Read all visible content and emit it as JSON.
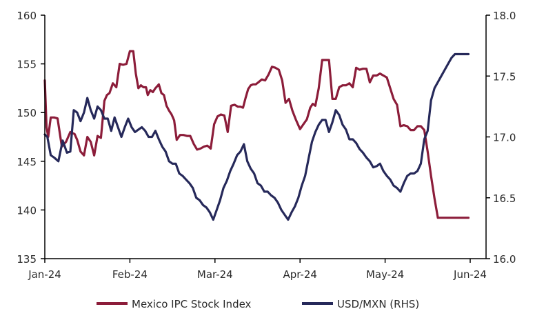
{
  "chart_data": {
    "type": "line",
    "title": "",
    "colors": {
      "ipc": "#8c1d3a",
      "usdmxn": "#26295a",
      "axis": "#000000",
      "text": "#2b2b2b"
    },
    "x_tick_labels": [
      "Jan-24",
      "Feb-24",
      "Mar-24",
      "Apr-24",
      "May-24",
      "Jun-24"
    ],
    "x_range": [
      0,
      5
    ],
    "left_axis": {
      "label": "",
      "ylim": [
        135,
        160
      ],
      "ticks": [
        135,
        140,
        145,
        150,
        155,
        160
      ],
      "tick_labels": [
        "135",
        "140",
        "145",
        "150",
        "155",
        "160"
      ]
    },
    "right_axis": {
      "label": "",
      "ylim": [
        16.0,
        18.0
      ],
      "ticks": [
        16.0,
        16.5,
        17.0,
        17.5,
        18.0
      ],
      "tick_labels": [
        "16.0",
        "16.5",
        "17.0",
        "17.5",
        "18.0"
      ]
    },
    "legend": {
      "position": "bottom",
      "entries": [
        "Mexico IPC Stock Index",
        "USD/MXN (RHS)"
      ]
    },
    "series": [
      {
        "name": "Mexico IPC Stock Index",
        "axis": "left",
        "color": "#8c1d3a",
        "x": [
          0,
          0.02,
          0.04,
          0.07,
          0.11,
          0.15,
          0.2,
          0.25,
          0.3,
          0.35,
          0.38,
          0.42,
          0.46,
          0.5,
          0.54,
          0.58,
          0.62,
          0.66,
          0.7,
          0.73,
          0.76,
          0.8,
          0.84,
          0.88,
          0.92,
          0.96,
          1.0,
          1.04,
          1.07,
          1.1,
          1.13,
          1.16,
          1.19,
          1.21,
          1.24,
          1.27,
          1.3,
          1.34,
          1.37,
          1.4,
          1.43,
          1.46,
          1.49,
          1.52,
          1.55,
          1.59,
          1.63,
          1.67,
          1.71,
          1.75,
          1.79,
          1.83,
          1.87,
          1.91,
          1.95,
          1.99,
          2.03,
          2.07,
          2.11,
          2.15,
          2.19,
          2.23,
          2.27,
          2.3,
          2.33,
          2.36,
          2.39,
          2.42,
          2.45,
          2.48,
          2.51,
          2.55,
          2.59,
          2.63,
          2.67,
          2.71,
          2.75,
          2.79,
          2.83,
          2.87,
          2.91,
          2.95,
          3.0,
          3.04,
          3.08,
          3.12,
          3.15,
          3.18,
          3.22,
          3.26,
          3.3,
          3.34,
          3.38,
          3.42,
          3.46,
          3.5,
          3.54,
          3.58,
          3.62,
          3.66,
          3.7,
          3.74,
          3.78,
          3.82,
          3.86,
          3.9,
          3.94,
          3.98,
          4.02,
          4.06,
          4.1,
          4.14,
          4.18,
          4.22,
          4.26,
          4.3,
          4.34,
          4.38,
          4.42,
          4.46,
          4.5,
          4.54,
          4.58,
          4.62,
          4.66,
          4.7,
          4.74,
          4.78,
          4.82,
          4.86,
          4.9,
          4.94,
          4.98
        ],
        "values": [
          153.3,
          148.5,
          147.5,
          149.5,
          149.5,
          149.4,
          146.5,
          147.0,
          148.0,
          147.8,
          147.2,
          146.0,
          145.6,
          147.5,
          147.0,
          145.6,
          147.6,
          147.4,
          151.2,
          151.8,
          152.0,
          153.0,
          152.6,
          155.0,
          154.9,
          155.0,
          156.3,
          156.3,
          154.0,
          152.5,
          152.8,
          152.6,
          152.6,
          151.8,
          152.3,
          152.1,
          152.5,
          152.9,
          152.0,
          151.8,
          150.7,
          150.2,
          149.8,
          149.2,
          147.2,
          147.7,
          147.7,
          147.6,
          147.6,
          146.8,
          146.2,
          146.3,
          146.5,
          146.6,
          146.3,
          148.8,
          149.6,
          149.8,
          149.7,
          148.0,
          150.7,
          150.8,
          150.6,
          150.6,
          150.5,
          151.5,
          152.4,
          152.8,
          152.9,
          152.9,
          153.1,
          153.4,
          153.3,
          153.9,
          154.7,
          154.6,
          154.4,
          153.3,
          151.0,
          151.4,
          150.2,
          149.3,
          148.3,
          148.8,
          149.3,
          150.5,
          150.9,
          150.7,
          152.5,
          155.4,
          155.4,
          155.4,
          151.4,
          151.4,
          152.6,
          152.8,
          152.8,
          153.0,
          152.6,
          154.6,
          154.4,
          154.5,
          154.5,
          153.1,
          153.8,
          153.8,
          154.0,
          153.8,
          153.6,
          152.5,
          151.4,
          150.8,
          148.6,
          148.7,
          148.6,
          148.2,
          148.2,
          148.6,
          148.6,
          148.2,
          146.0,
          143.5,
          141.2,
          139.2,
          139.2,
          139.2,
          139.2,
          139.2,
          139.2,
          139.2,
          139.2,
          139.2,
          139.2
        ]
      },
      {
        "name": "USD/MXN (RHS)",
        "axis": "right",
        "color": "#26295a",
        "x": [
          0,
          0.03,
          0.07,
          0.11,
          0.16,
          0.21,
          0.26,
          0.3,
          0.34,
          0.38,
          0.42,
          0.46,
          0.5,
          0.54,
          0.58,
          0.62,
          0.66,
          0.7,
          0.74,
          0.78,
          0.82,
          0.86,
          0.9,
          0.94,
          0.98,
          1.02,
          1.06,
          1.1,
          1.14,
          1.18,
          1.22,
          1.26,
          1.3,
          1.34,
          1.38,
          1.42,
          1.46,
          1.5,
          1.54,
          1.58,
          1.62,
          1.66,
          1.7,
          1.74,
          1.78,
          1.82,
          1.86,
          1.9,
          1.94,
          1.98,
          2.02,
          2.06,
          2.1,
          2.14,
          2.18,
          2.22,
          2.26,
          2.3,
          2.34,
          2.38,
          2.42,
          2.46,
          2.5,
          2.54,
          2.58,
          2.62,
          2.66,
          2.7,
          2.74,
          2.78,
          2.82,
          2.86,
          2.9,
          2.94,
          2.98,
          3.02,
          3.06,
          3.1,
          3.14,
          3.18,
          3.22,
          3.26,
          3.3,
          3.34,
          3.38,
          3.42,
          3.46,
          3.5,
          3.54,
          3.58,
          3.62,
          3.66,
          3.7,
          3.74,
          3.78,
          3.82,
          3.86,
          3.9,
          3.94,
          3.98,
          4.02,
          4.06,
          4.1,
          4.14,
          4.18,
          4.22,
          4.26,
          4.3,
          4.34,
          4.38,
          4.42,
          4.46,
          4.5,
          4.54,
          4.58,
          4.62,
          4.66,
          4.7,
          4.74,
          4.78,
          4.82,
          4.86,
          4.9,
          4.94,
          4.98
        ],
        "values": [
          17.02,
          17.0,
          16.85,
          16.83,
          16.8,
          16.97,
          16.87,
          16.88,
          17.22,
          17.2,
          17.13,
          17.2,
          17.32,
          17.22,
          17.15,
          17.25,
          17.22,
          17.15,
          17.15,
          17.05,
          17.16,
          17.08,
          17.0,
          17.08,
          17.15,
          17.08,
          17.04,
          17.06,
          17.08,
          17.05,
          17.0,
          17.0,
          17.05,
          16.98,
          16.92,
          16.88,
          16.8,
          16.78,
          16.78,
          16.7,
          16.68,
          16.65,
          16.62,
          16.58,
          16.5,
          16.48,
          16.44,
          16.42,
          16.38,
          16.32,
          16.4,
          16.48,
          16.58,
          16.64,
          16.72,
          16.78,
          16.85,
          16.88,
          16.94,
          16.8,
          16.74,
          16.7,
          16.62,
          16.6,
          16.55,
          16.55,
          16.52,
          16.5,
          16.46,
          16.4,
          16.36,
          16.32,
          16.38,
          16.43,
          16.5,
          16.6,
          16.68,
          16.82,
          16.96,
          17.04,
          17.1,
          17.14,
          17.14,
          17.04,
          17.12,
          17.22,
          17.18,
          17.1,
          17.06,
          16.98,
          16.98,
          16.95,
          16.9,
          16.87,
          16.83,
          16.8,
          16.75,
          16.76,
          16.78,
          16.72,
          16.68,
          16.65,
          16.6,
          16.58,
          16.55,
          16.62,
          16.68,
          16.7,
          16.7,
          16.72,
          16.78,
          16.98,
          17.05,
          17.3,
          17.4,
          17.45,
          17.5,
          17.55,
          17.6,
          17.65,
          17.68,
          17.68,
          17.68,
          17.68,
          17.68
        ]
      }
    ]
  }
}
